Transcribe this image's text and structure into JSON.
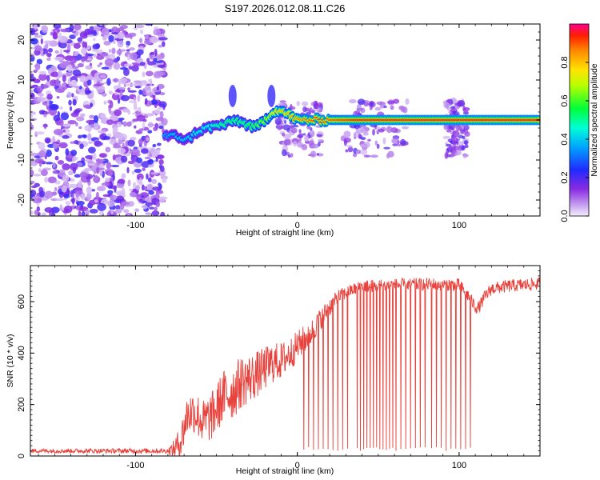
{
  "title": "S197.2026.012.08.11.C26",
  "colors": {
    "snr_line": "#e8403a",
    "speckle": "#7a18e6",
    "axis": "#000000",
    "background": "#ffffff"
  },
  "chart_data": [
    {
      "type": "heatmap",
      "name": "spectrogram",
      "xlabel": "Height of straight line (km)",
      "ylabel": "Frequency (Hz)",
      "xlim": [
        -165,
        150
      ],
      "ylim": [
        -24,
        24
      ],
      "xticks": [
        -100,
        0,
        100
      ],
      "yticks": [
        -20,
        -10,
        0,
        10,
        20
      ],
      "xtick_labels": [
        "-100",
        "0",
        "100"
      ],
      "ytick_labels": [
        "-20",
        "-10",
        "0",
        "10",
        "20"
      ],
      "colorbar": {
        "label": "Normalized spectral amplitude",
        "range": [
          0,
          1
        ],
        "ticks": [
          0.0,
          0.2,
          0.4,
          0.6,
          0.8
        ],
        "tick_labels": [
          "0.0",
          "0.2",
          "0.4",
          "0.6",
          "0.8"
        ]
      },
      "noise_region": [
        -165,
        -82
      ],
      "signal_track": {
        "x": [
          -82,
          -75,
          -68,
          -62,
          -56,
          -50,
          -44,
          -38,
          -32,
          -26,
          -20,
          -15,
          -11,
          -6,
          0,
          10,
          20,
          40,
          60,
          80,
          100,
          120,
          150
        ],
        "freq": [
          -4,
          -4,
          -5,
          -3,
          -2,
          -1.5,
          -1,
          0,
          -1,
          -2,
          0,
          2,
          2.5,
          1.5,
          0,
          0,
          0,
          0,
          0,
          0,
          0,
          0,
          0
        ],
        "amplitude": [
          0.35,
          0.4,
          0.4,
          0.45,
          0.45,
          0.5,
          0.55,
          0.55,
          0.55,
          0.6,
          0.65,
          0.75,
          0.8,
          0.8,
          0.85,
          0.9,
          0.9,
          0.95,
          0.95,
          0.95,
          0.95,
          0.95,
          0.95
        ]
      },
      "spike_events": [
        -40,
        -16
      ],
      "burst_regions": [
        [
          -12,
          15
        ],
        [
          28,
          68
        ],
        [
          92,
          105
        ]
      ]
    },
    {
      "type": "line",
      "name": "snr",
      "xlabel": "Height of straight line (km)",
      "ylabel": "SNR (10 * v/v)",
      "xlim": [
        -165,
        150
      ],
      "ylim": [
        0,
        740
      ],
      "xticks": [
        -100,
        0,
        100
      ],
      "yticks": [
        0,
        200,
        400,
        600
      ],
      "xtick_labels": [
        "-100",
        "0",
        "100"
      ],
      "ytick_labels": [
        "0",
        "200",
        "400",
        "600"
      ],
      "series": [
        {
          "name": "SNR",
          "trend_x": [
            -165,
            -80,
            -76,
            -72,
            -68,
            -64,
            -58,
            -52,
            -46,
            -40,
            -34,
            -28,
            -22,
            -16,
            -10,
            -4,
            2,
            8,
            14,
            20,
            26,
            32,
            40,
            60,
            80,
            100,
            106,
            110,
            112,
            116,
            120,
            130,
            140,
            150
          ],
          "trend_y": [
            20,
            20,
            28,
            60,
            160,
            175,
            130,
            160,
            230,
            250,
            290,
            305,
            330,
            360,
            370,
            400,
            440,
            475,
            530,
            580,
            620,
            640,
            660,
            665,
            668,
            665,
            620,
            580,
            575,
            620,
            650,
            660,
            665,
            670
          ],
          "noise_amplitude": [
            [
              -165,
              8
            ],
            [
              -80,
              10
            ],
            [
              -70,
              80
            ],
            [
              -40,
              110
            ],
            [
              0,
              60
            ],
            [
              30,
              25
            ],
            [
              150,
              25
            ]
          ],
          "drop_events": [
            4,
            7,
            10,
            13,
            16,
            19,
            22,
            25,
            28,
            31,
            37,
            39,
            41,
            43,
            45,
            47,
            49,
            51,
            53,
            55,
            57,
            59,
            61,
            64,
            67,
            70,
            73,
            76,
            79,
            83,
            86,
            89,
            92,
            95,
            98,
            101,
            104,
            107
          ],
          "drop_floor": 20
        }
      ]
    }
  ]
}
